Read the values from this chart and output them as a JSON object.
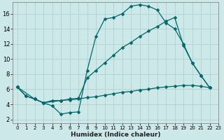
{
  "xlabel": "Humidex (Indice chaleur)",
  "background_color": "#cce8e8",
  "grid_color": "#b0d0d0",
  "line_color": "#006868",
  "xlim": [
    -0.5,
    23
  ],
  "ylim": [
    1.5,
    17.5
  ],
  "x_ticks": [
    0,
    1,
    2,
    3,
    4,
    5,
    6,
    7,
    8,
    9,
    10,
    11,
    12,
    13,
    14,
    15,
    16,
    17,
    18,
    19,
    20,
    21,
    22,
    23
  ],
  "y_ticks": [
    2,
    4,
    6,
    8,
    10,
    12,
    14,
    16
  ],
  "line1_x": [
    0,
    1,
    2,
    3,
    4,
    5,
    6,
    7,
    8,
    9,
    10,
    11,
    12,
    13,
    14,
    15,
    16,
    17,
    18,
    19,
    20,
    21,
    22
  ],
  "line1_y": [
    6.3,
    5.1,
    4.7,
    4.2,
    3.8,
    2.7,
    2.9,
    3.0,
    8.5,
    13.0,
    15.3,
    15.5,
    16.0,
    17.0,
    17.2,
    17.0,
    16.5,
    14.8,
    14.0,
    12.0,
    9.5,
    7.8,
    6.2
  ],
  "line2_x": [
    0,
    2,
    3,
    5,
    6,
    7,
    8,
    9,
    10,
    11,
    12,
    13,
    14,
    15,
    16,
    17,
    18,
    19,
    20,
    21,
    22
  ],
  "line2_y": [
    6.3,
    4.7,
    4.2,
    4.5,
    4.7,
    4.8,
    7.5,
    8.5,
    9.5,
    10.5,
    11.5,
    12.2,
    13.0,
    13.7,
    14.3,
    15.0,
    15.5,
    11.8,
    9.5,
    7.8,
    6.2
  ],
  "line3_x": [
    0,
    1,
    2,
    3,
    4,
    5,
    6,
    7,
    8,
    9,
    10,
    11,
    12,
    13,
    14,
    15,
    16,
    17,
    18,
    19,
    20,
    21,
    22
  ],
  "line3_y": [
    6.3,
    5.1,
    4.7,
    4.2,
    4.5,
    4.5,
    4.6,
    4.7,
    4.9,
    5.0,
    5.2,
    5.4,
    5.6,
    5.7,
    5.9,
    6.0,
    6.2,
    6.3,
    6.4,
    6.5,
    6.5,
    6.4,
    6.2
  ]
}
